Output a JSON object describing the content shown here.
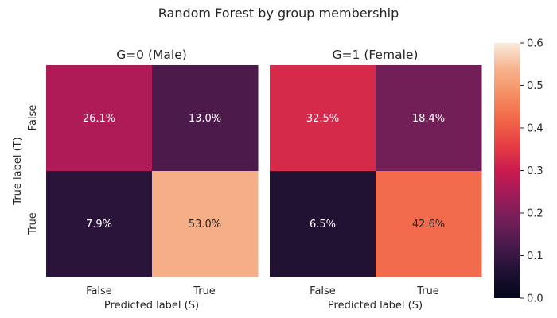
{
  "chart_data": {
    "type": "heatmap",
    "title": "Random Forest by group membership",
    "x_categories": [
      "False",
      "True"
    ],
    "y_categories": [
      "False",
      "True"
    ],
    "xlabel": "Predicted label (S)",
    "ylabel": "True label (T)",
    "colormap": "rocket",
    "colorbar": {
      "range": [
        0.0,
        0.6
      ],
      "ticks": [
        "0.0",
        "0.1",
        "0.2",
        "0.3",
        "0.4",
        "0.5",
        "0.6"
      ]
    },
    "panels": [
      {
        "title": "G=0 (Male)",
        "values": [
          [
            0.261,
            0.13
          ],
          [
            0.079,
            0.53
          ]
        ],
        "labels": [
          [
            "26.1%",
            "13.0%"
          ],
          [
            "7.9%",
            "53.0%"
          ]
        ]
      },
      {
        "title": "G=1 (Female)",
        "values": [
          [
            0.325,
            0.184
          ],
          [
            0.065,
            0.426
          ]
        ],
        "labels": [
          [
            "32.5%",
            "18.4%"
          ],
          [
            "6.5%",
            "42.6%"
          ]
        ]
      }
    ]
  }
}
